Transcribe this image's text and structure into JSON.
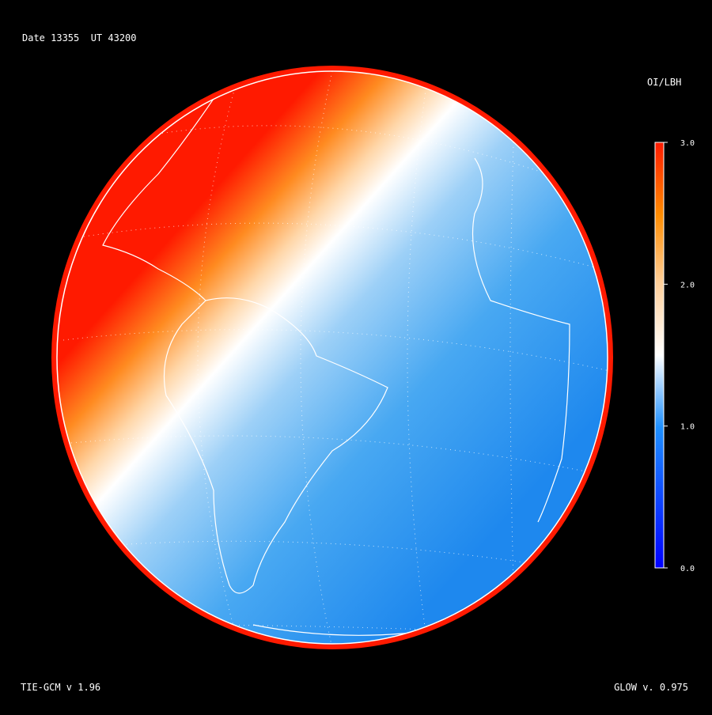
{
  "header": {
    "date": "Date 13355  UT 43200"
  },
  "colorbar": {
    "title": "OI/LBH",
    "range": [
      0,
      3
    ],
    "ticks": [
      {
        "value": 0,
        "label": "0.0"
      },
      {
        "value": 1,
        "label": "1.0"
      },
      {
        "value": 2,
        "label": "2.0"
      },
      {
        "value": 3,
        "label": "3.0"
      }
    ]
  },
  "footer": {
    "left": "TIE-GCM v 1.96",
    "right": "GLOW v. 0.975"
  }
}
